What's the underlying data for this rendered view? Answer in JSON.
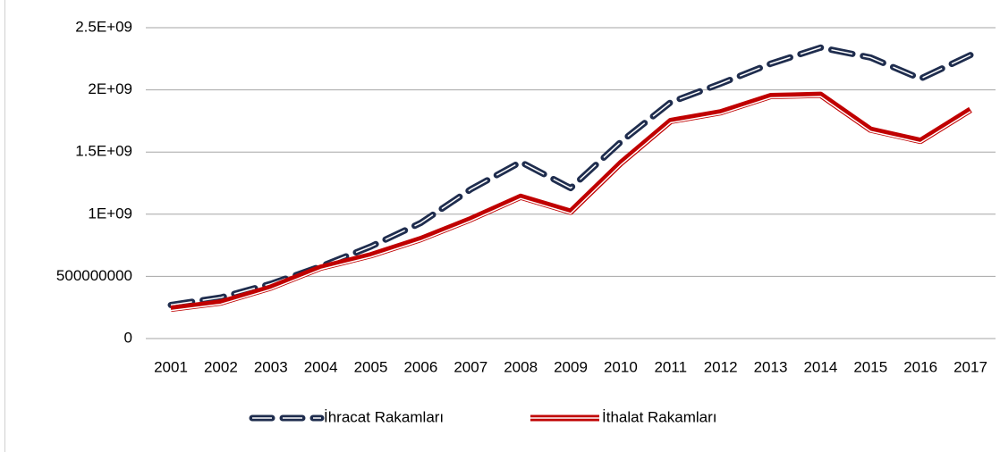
{
  "chart_data": {
    "type": "line",
    "x": [
      2001,
      2002,
      2003,
      2004,
      2005,
      2006,
      2007,
      2008,
      2009,
      2010,
      2011,
      2012,
      2013,
      2014,
      2015,
      2016,
      2017
    ],
    "series": [
      {
        "name": "İhracat Rakamları",
        "color": "#1f2d4e",
        "dashed": true,
        "values": [
          270000000,
          330000000,
          440000000,
          580000000,
          740000000,
          930000000,
          1200000000,
          1420000000,
          1210000000,
          1580000000,
          1900000000,
          2050000000,
          2210000000,
          2340000000,
          2260000000,
          2090000000,
          2280000000
        ]
      },
      {
        "name": "İthalat Rakamları",
        "color": "#c00000",
        "dashed": false,
        "values": [
          240000000,
          290000000,
          410000000,
          570000000,
          670000000,
          800000000,
          960000000,
          1140000000,
          1020000000,
          1410000000,
          1750000000,
          1820000000,
          1950000000,
          1960000000,
          1680000000,
          1590000000,
          1840000000
        ]
      }
    ],
    "xlim": [
      2001,
      2017
    ],
    "ylim": [
      0,
      2500000000
    ],
    "yticks": [
      0,
      500000000,
      {
        "value": 1000000000,
        "label": "1E+09"
      },
      {
        "value": 1500000000,
        "label": "1.5E+09"
      },
      {
        "value": 2000000000,
        "label": "2E+09"
      },
      {
        "value": 2500000000,
        "label": "2.5E+09"
      }
    ],
    "grid": true,
    "legend": "bottom"
  }
}
